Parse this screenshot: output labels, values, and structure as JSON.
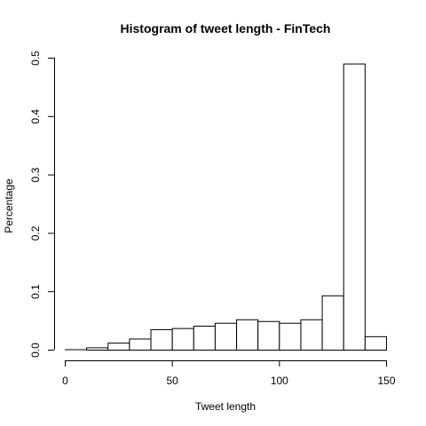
{
  "chart_data": {
    "type": "bar",
    "title": "Histogram of tweet length - FinTech",
    "xlabel": "Tweet length",
    "ylabel": "Percentage",
    "bin_edges": [
      0,
      10,
      20,
      30,
      40,
      50,
      60,
      70,
      80,
      90,
      100,
      110,
      120,
      130,
      140,
      150
    ],
    "values": [
      0.0,
      0.004,
      0.012,
      0.019,
      0.035,
      0.037,
      0.041,
      0.046,
      0.052,
      0.049,
      0.046,
      0.052,
      0.093,
      0.49,
      0.023
    ],
    "xlim": [
      0,
      150
    ],
    "ylim": [
      0,
      0.5
    ],
    "x_ticks": [
      0,
      50,
      100,
      150
    ],
    "x_tick_labels": [
      "0",
      "50",
      "100",
      "150"
    ],
    "y_ticks": [
      0.0,
      0.1,
      0.2,
      0.3,
      0.4,
      0.5
    ],
    "y_tick_labels": [
      "0.0",
      "0.1",
      "0.2",
      "0.3",
      "0.4",
      "0.5"
    ],
    "grid": false,
    "bar_fill": "#ffffff",
    "bar_stroke": "#000000"
  }
}
